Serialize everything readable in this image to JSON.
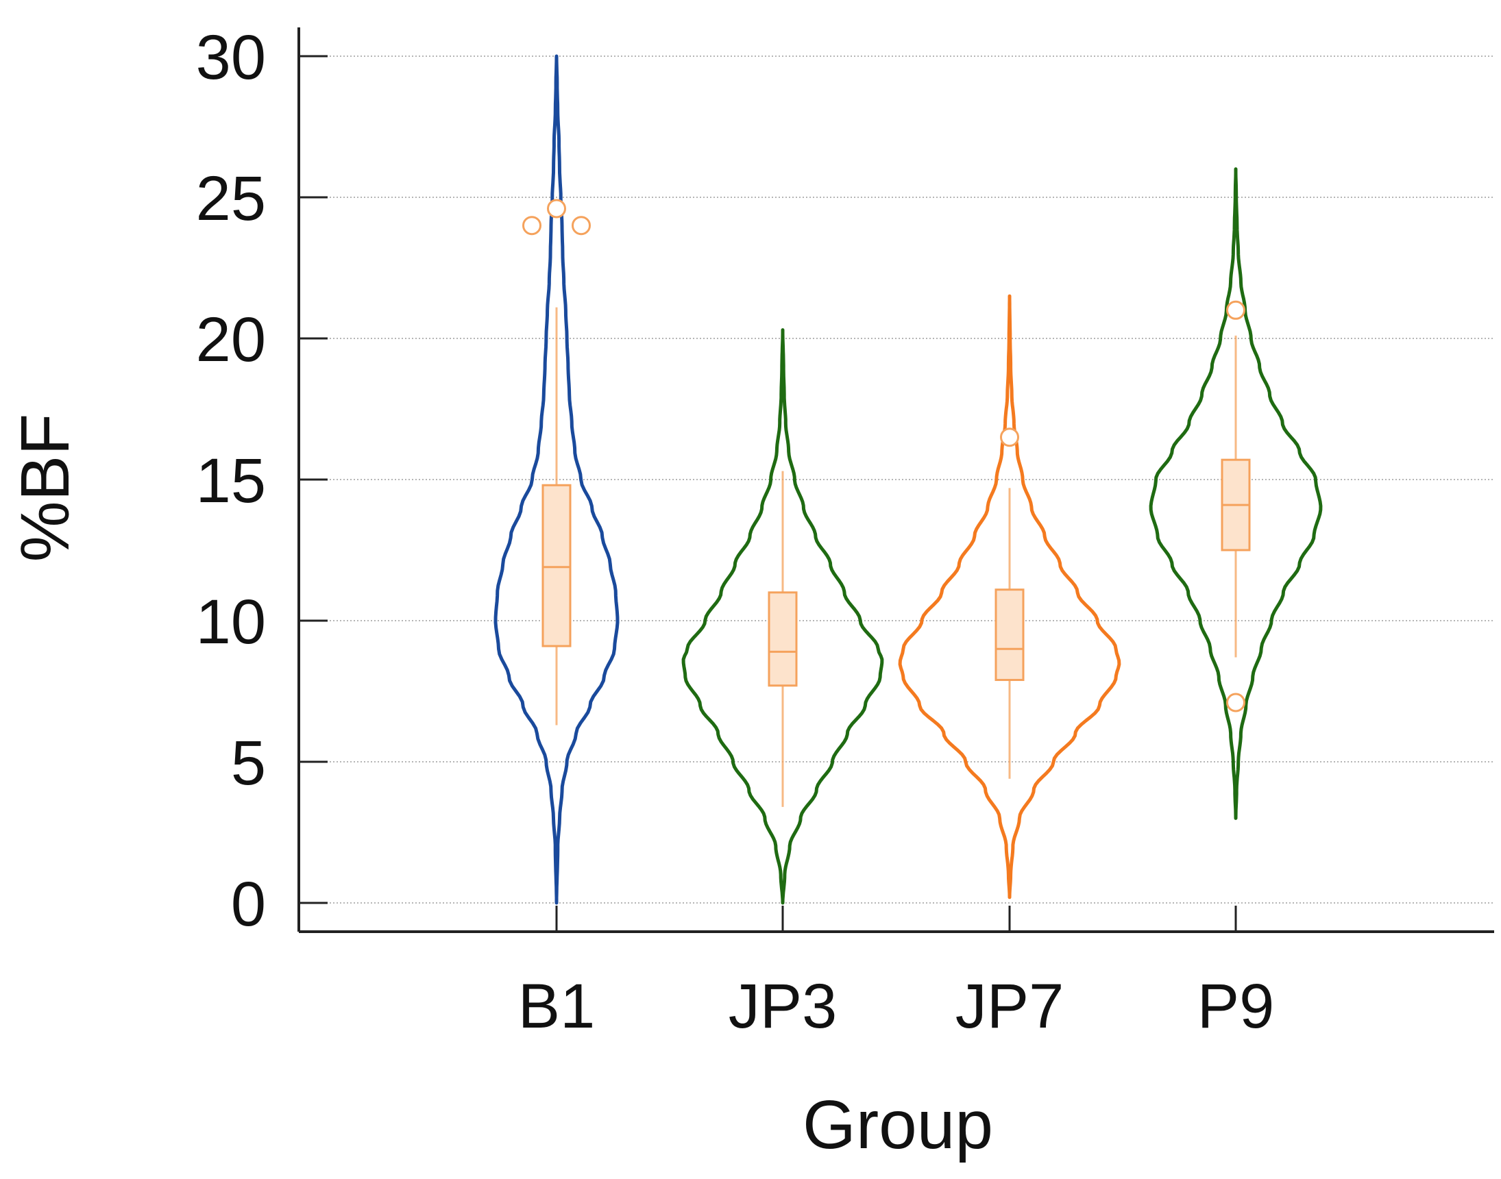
{
  "chart_data": {
    "type": "violin",
    "title": "",
    "xlabel": "Group",
    "ylabel": "%BF",
    "ylim": [
      0,
      30
    ],
    "yticks": [
      0,
      5,
      10,
      15,
      20,
      25,
      30
    ],
    "ytick_labels": [
      "0",
      "5",
      "10",
      "15",
      "20",
      "25",
      "30"
    ],
    "grid": true,
    "categories": [
      "B1",
      "JP3",
      "JP7",
      "P9"
    ],
    "box_color": "#F5A25C",
    "box_fill": "#FDE3CC",
    "series": [
      {
        "name": "B1",
        "color": "#1A4A9C",
        "range": [
          0,
          30
        ],
        "box": {
          "q1": 9.1,
          "median": 11.9,
          "q3": 14.8,
          "whisker_low": 6.3,
          "whisker_high": 21.1
        },
        "outliers": [
          24.0,
          24.6,
          24.0
        ],
        "violin_profile": [
          [
            0,
            0.0
          ],
          [
            2,
            0.02
          ],
          [
            3,
            0.05
          ],
          [
            4,
            0.09
          ],
          [
            5,
            0.17
          ],
          [
            6,
            0.32
          ],
          [
            7,
            0.55
          ],
          [
            8,
            0.78
          ],
          [
            9,
            0.95
          ],
          [
            10,
            1.0
          ],
          [
            11,
            0.97
          ],
          [
            12,
            0.88
          ],
          [
            13,
            0.75
          ],
          [
            14,
            0.58
          ],
          [
            15,
            0.4
          ],
          [
            16,
            0.3
          ],
          [
            17,
            0.25
          ],
          [
            18,
            0.21
          ],
          [
            19,
            0.19
          ],
          [
            20,
            0.17
          ],
          [
            21,
            0.15
          ],
          [
            22,
            0.12
          ],
          [
            23,
            0.1
          ],
          [
            24,
            0.09
          ],
          [
            25,
            0.07
          ],
          [
            26,
            0.05
          ],
          [
            27,
            0.04
          ],
          [
            28,
            0.02
          ],
          [
            29,
            0.01
          ],
          [
            30,
            0.0
          ]
        ]
      },
      {
        "name": "JP3",
        "color": "#1F6B12",
        "range": [
          0,
          20.3
        ],
        "box": {
          "q1": 7.7,
          "median": 8.9,
          "q3": 11.0,
          "whisker_low": 3.4,
          "whisker_high": 15.3
        },
        "outliers": [],
        "violin_profile": [
          [
            0,
            0.0
          ],
          [
            1,
            0.02
          ],
          [
            2,
            0.07
          ],
          [
            3,
            0.18
          ],
          [
            4,
            0.34
          ],
          [
            5,
            0.5
          ],
          [
            6,
            0.65
          ],
          [
            7,
            0.83
          ],
          [
            8,
            0.98
          ],
          [
            8.6,
            1.0
          ],
          [
            9,
            0.96
          ],
          [
            10,
            0.78
          ],
          [
            11,
            0.62
          ],
          [
            12,
            0.48
          ],
          [
            13,
            0.33
          ],
          [
            14,
            0.21
          ],
          [
            15,
            0.12
          ],
          [
            16,
            0.06
          ],
          [
            17,
            0.03
          ],
          [
            18,
            0.015
          ],
          [
            19,
            0.008
          ],
          [
            20.3,
            0.0
          ]
        ]
      },
      {
        "name": "JP7",
        "color": "#F47A1F",
        "range": [
          0.2,
          21.5
        ],
        "box": {
          "q1": 7.9,
          "median": 9.0,
          "q3": 11.1,
          "whisker_low": 4.4,
          "whisker_high": 14.7
        },
        "outliers": [
          16.5
        ],
        "violin_profile": [
          [
            0.2,
            0.0
          ],
          [
            1,
            0.01
          ],
          [
            2,
            0.03
          ],
          [
            3,
            0.09
          ],
          [
            4,
            0.22
          ],
          [
            5,
            0.4
          ],
          [
            6,
            0.6
          ],
          [
            7,
            0.82
          ],
          [
            8,
            0.97
          ],
          [
            8.5,
            1.0
          ],
          [
            9,
            0.97
          ],
          [
            10,
            0.8
          ],
          [
            11,
            0.62
          ],
          [
            12,
            0.46
          ],
          [
            13,
            0.32
          ],
          [
            14,
            0.2
          ],
          [
            15,
            0.12
          ],
          [
            16,
            0.07
          ],
          [
            17,
            0.04
          ],
          [
            18,
            0.02
          ],
          [
            19,
            0.01
          ],
          [
            20,
            0.005
          ],
          [
            21.5,
            0.0
          ]
        ]
      },
      {
        "name": "P9",
        "color": "#1F6B12",
        "range": [
          3,
          26
        ],
        "box": {
          "q1": 12.5,
          "median": 14.1,
          "q3": 15.7,
          "whisker_low": 8.7,
          "whisker_high": 20.1
        },
        "outliers": [
          21.0,
          7.1
        ],
        "violin_profile": [
          [
            3,
            0.0
          ],
          [
            4,
            0.01
          ],
          [
            5,
            0.03
          ],
          [
            6,
            0.06
          ],
          [
            7,
            0.12
          ],
          [
            8,
            0.2
          ],
          [
            9,
            0.3
          ],
          [
            10,
            0.42
          ],
          [
            11,
            0.56
          ],
          [
            12,
            0.75
          ],
          [
            13,
            0.92
          ],
          [
            14,
            1.0
          ],
          [
            15,
            0.94
          ],
          [
            16,
            0.75
          ],
          [
            17,
            0.55
          ],
          [
            18,
            0.4
          ],
          [
            19,
            0.28
          ],
          [
            20,
            0.18
          ],
          [
            21,
            0.11
          ],
          [
            22,
            0.06
          ],
          [
            23,
            0.03
          ],
          [
            24,
            0.015
          ],
          [
            25,
            0.006
          ],
          [
            26,
            0.0
          ]
        ]
      }
    ]
  }
}
